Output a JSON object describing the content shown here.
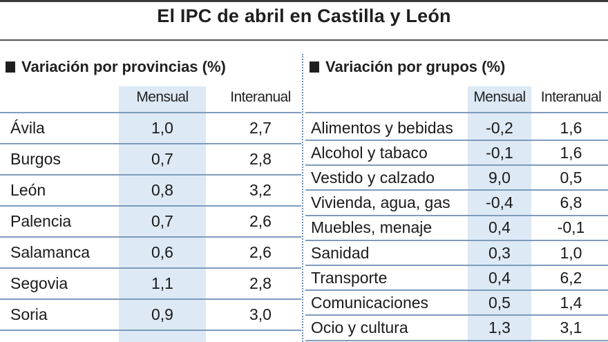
{
  "title": "El IPC de abril en Castilla y León",
  "colors": {
    "band": "#dde9f5",
    "rule": "#7d9bbd",
    "separator": "#6b8fb5"
  },
  "provincias": {
    "heading": "Variación por provincias (%)",
    "col_mensual": "Mensual",
    "col_interanual": "Interanual",
    "rows": [
      {
        "name": "Ávila",
        "mensual": "1,0",
        "interanual": "2,7"
      },
      {
        "name": "Burgos",
        "mensual": "0,7",
        "interanual": "2,8"
      },
      {
        "name": "León",
        "mensual": "0,8",
        "interanual": "3,2"
      },
      {
        "name": "Palencia",
        "mensual": "0,7",
        "interanual": "2,6"
      },
      {
        "name": "Salamanca",
        "mensual": "0,6",
        "interanual": "2,6"
      },
      {
        "name": "Segovia",
        "mensual": "1,1",
        "interanual": "2,8"
      },
      {
        "name": "Soria",
        "mensual": "0,9",
        "interanual": "3,0"
      }
    ]
  },
  "grupos": {
    "heading": "Variación por grupos (%)",
    "col_mensual": "Mensual",
    "col_interanual": "Interanual",
    "rows": [
      {
        "name": "Alimentos y bebidas",
        "mensual": "-0,2",
        "interanual": "1,6"
      },
      {
        "name": "Alcohol y tabaco",
        "mensual": "-0,1",
        "interanual": "1,6"
      },
      {
        "name": "Vestido y calzado",
        "mensual": "9,0",
        "interanual": "0,5"
      },
      {
        "name": "Vivienda, agua, gas",
        "mensual": "-0,4",
        "interanual": "6,8"
      },
      {
        "name": "Muebles, menaje",
        "mensual": "0,4",
        "interanual": "-0,1"
      },
      {
        "name": "Sanidad",
        "mensual": "0,3",
        "interanual": "1,0"
      },
      {
        "name": "Transporte",
        "mensual": "0,4",
        "interanual": "6,2"
      },
      {
        "name": "Comunicaciones",
        "mensual": "0,5",
        "interanual": "1,4"
      },
      {
        "name": "Ocio y cultura",
        "mensual": "1,3",
        "interanual": "3,1"
      }
    ]
  }
}
